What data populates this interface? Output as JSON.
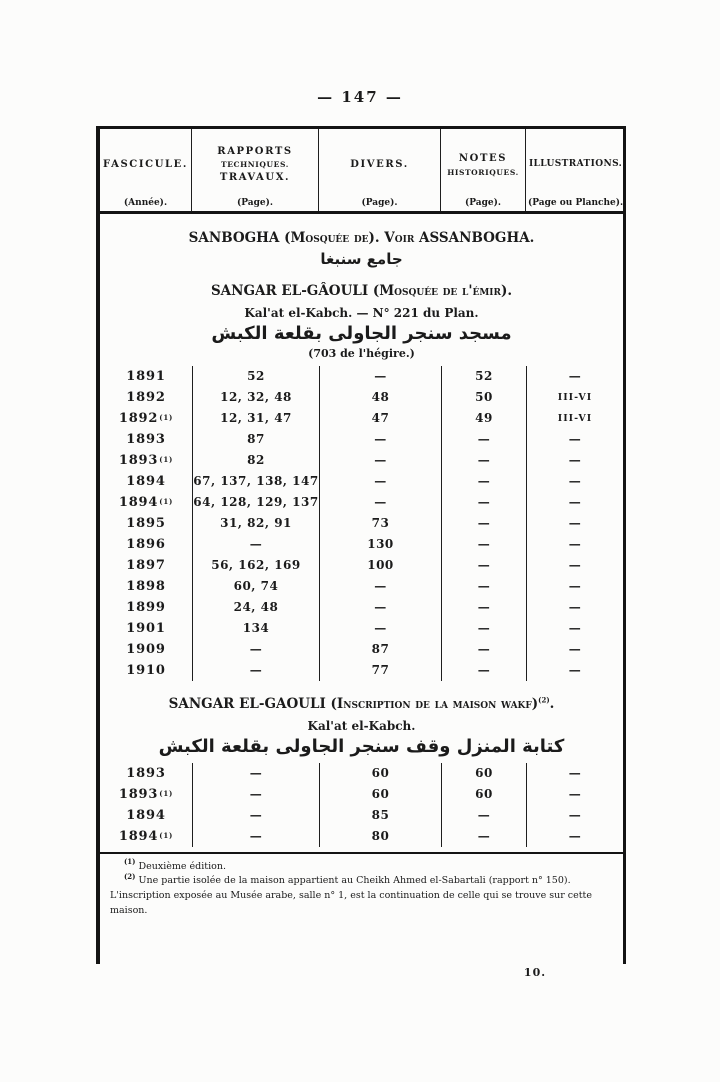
{
  "page": {
    "header_number": "— 147 —",
    "signature": "10."
  },
  "table": {
    "header": {
      "columns": [
        {
          "lines": [
            "FASCICULE."
          ],
          "subtitle": "(Année)."
        },
        {
          "lines": [
            "RAPPORTS",
            "TECHNIQUES.",
            "TRAVAUX."
          ],
          "subtitle": "(Page)."
        },
        {
          "lines": [
            "DIVERS."
          ],
          "subtitle": "(Page)."
        },
        {
          "lines": [
            "NOTES",
            "HISTORIQUES."
          ],
          "subtitle": "(Page)."
        },
        {
          "lines": [
            "ILLUSTRATIONS."
          ],
          "subtitle": "(Page ou Planche)."
        }
      ]
    }
  },
  "sections": [
    {
      "heading": "SANBOGHA (Mosquée de). Voir ASSANBOGHA.",
      "arabic": "جامع سنبغا"
    },
    {
      "heading": "SANGAR EL-GÂOULI (Mosquée de l'émir).",
      "subheading": "Kal'at el-Kabch. — N° 221 du Plan.",
      "arabic": "مسجد سنجر الجاولى بقلعة الكبش",
      "note": "(703 de l'hégire.)",
      "rows": [
        {
          "year": "1891",
          "sup": "",
          "rapports": "52",
          "divers": "—",
          "notes": "52",
          "illustrations": "—"
        },
        {
          "year": "1892",
          "sup": "",
          "rapports": "12, 32, 48",
          "divers": "48",
          "notes": "50",
          "illustrations": "III-VI"
        },
        {
          "year": "1892",
          "sup": "(1)",
          "rapports": "12, 31, 47",
          "divers": "47",
          "notes": "49",
          "illustrations": "III-VI"
        },
        {
          "year": "1893",
          "sup": "",
          "rapports": "87",
          "divers": "—",
          "notes": "—",
          "illustrations": "—"
        },
        {
          "year": "1893",
          "sup": "(1)",
          "rapports": "82",
          "divers": "—",
          "notes": "—",
          "illustrations": "—"
        },
        {
          "year": "1894",
          "sup": "",
          "rapports": "67, 137, 138, 147",
          "divers": "—",
          "notes": "—",
          "illustrations": "—"
        },
        {
          "year": "1894",
          "sup": "(1)",
          "rapports": "64, 128, 129, 137",
          "divers": "—",
          "notes": "—",
          "illustrations": "—"
        },
        {
          "year": "1895",
          "sup": "",
          "rapports": "31, 82, 91",
          "divers": "73",
          "notes": "—",
          "illustrations": "—"
        },
        {
          "year": "1896",
          "sup": "",
          "rapports": "—",
          "divers": "130",
          "notes": "—",
          "illustrations": "—"
        },
        {
          "year": "1897",
          "sup": "",
          "rapports": "56, 162, 169",
          "divers": "100",
          "notes": "—",
          "illustrations": "—"
        },
        {
          "year": "1898",
          "sup": "",
          "rapports": "60, 74",
          "divers": "—",
          "notes": "—",
          "illustrations": "—"
        },
        {
          "year": "1899",
          "sup": "",
          "rapports": "24, 48",
          "divers": "—",
          "notes": "—",
          "illustrations": "—"
        },
        {
          "year": "1901",
          "sup": "",
          "rapports": "134",
          "divers": "—",
          "notes": "—",
          "illustrations": "—"
        },
        {
          "year": "1909",
          "sup": "",
          "rapports": "—",
          "divers": "87",
          "notes": "—",
          "illustrations": "—"
        },
        {
          "year": "1910",
          "sup": "",
          "rapports": "—",
          "divers": "77",
          "notes": "—",
          "illustrations": "—"
        }
      ]
    },
    {
      "heading": "SANGAR EL-GAOULI (Inscription de la maison wakf)",
      "heading_sup": "(2)",
      "heading_end": ".",
      "subheading": "Kal'at el-Kabch.",
      "arabic": "كتابة المنزل وقف سنجر الجاولى بقلعة الكبش",
      "rows": [
        {
          "year": "1893",
          "sup": "",
          "rapports": "—",
          "divers": "60",
          "notes": "60",
          "illustrations": "—"
        },
        {
          "year": "1893",
          "sup": "(1)",
          "rapports": "—",
          "divers": "60",
          "notes": "60",
          "illustrations": "—"
        },
        {
          "year": "1894",
          "sup": "",
          "rapports": "—",
          "divers": "85",
          "notes": "—",
          "illustrations": "—"
        },
        {
          "year": "1894",
          "sup": "(1)",
          "rapports": "—",
          "divers": "80",
          "notes": "—",
          "illustrations": "—"
        }
      ]
    }
  ],
  "footnotes": [
    {
      "ref": "(1)",
      "text": "Deuxième édition."
    },
    {
      "ref": "(2)",
      "text": "Une partie isolée de la maison appartient au Cheikh Ahmed el-Sabartali (rapport n° 150). L'inscription exposée au Musée arabe, salle n° 1, est la continuation de celle qui se trouve sur cette maison."
    }
  ]
}
